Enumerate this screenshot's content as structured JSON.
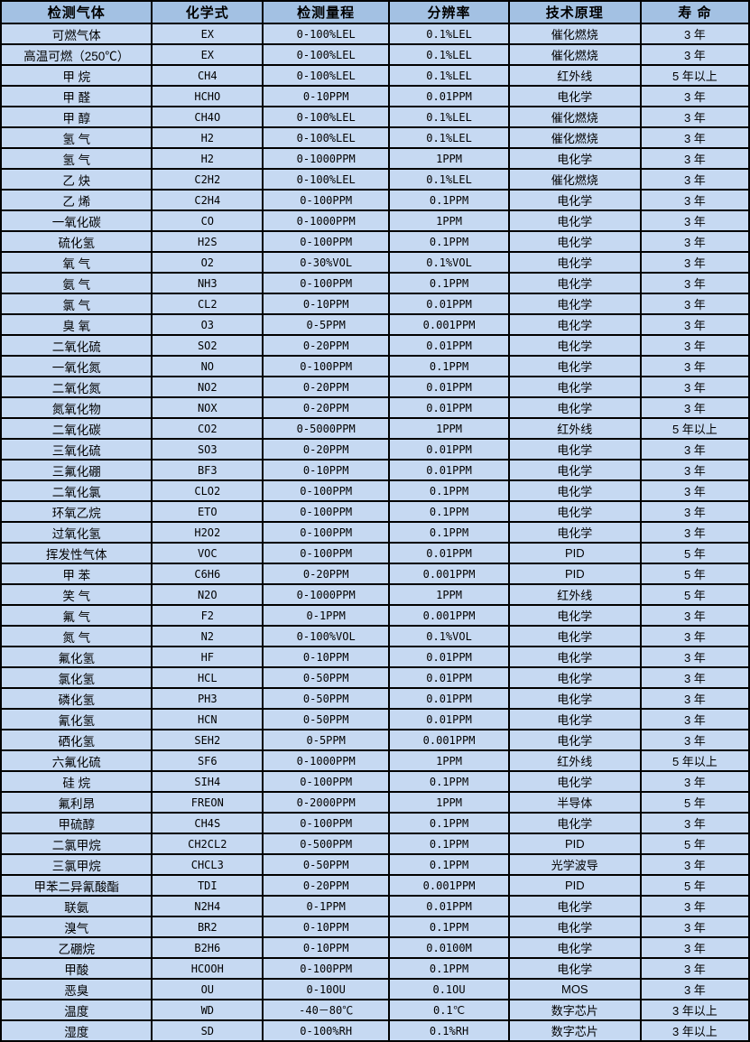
{
  "table": {
    "columns": [
      {
        "label": "检测气体"
      },
      {
        "label": "化学式"
      },
      {
        "label": "检测量程"
      },
      {
        "label": "分辨率"
      },
      {
        "label": "技术原理"
      },
      {
        "label": "寿 命"
      }
    ],
    "rows": [
      [
        "可燃气体",
        "EX",
        "0-100%LEL",
        "0.1%LEL",
        "催化燃烧",
        "3 年"
      ],
      [
        "高温可燃（250℃）",
        "EX",
        "0-100%LEL",
        "0.1%LEL",
        "催化燃烧",
        "3 年"
      ],
      [
        "甲 烷",
        "CH4",
        "0-100%LEL",
        "0.1%LEL",
        "红外线",
        "5 年以上"
      ],
      [
        "甲 醛",
        "HCHO",
        "0-10PPM",
        "0.01PPM",
        "电化学",
        "3 年"
      ],
      [
        "甲 醇",
        "CH4O",
        "0-100%LEL",
        "0.1%LEL",
        "催化燃烧",
        "3 年"
      ],
      [
        "氢 气",
        "H2",
        "0-100%LEL",
        "0.1%LEL",
        "催化燃烧",
        "3 年"
      ],
      [
        "氢 气",
        "H2",
        "0-1000PPM",
        "1PPM",
        "电化学",
        "3 年"
      ],
      [
        "乙 炔",
        "C2H2",
        "0-100%LEL",
        "0.1%LEL",
        "催化燃烧",
        "3 年"
      ],
      [
        "乙 烯",
        "C2H4",
        "0-100PPM",
        "0.1PPM",
        "电化学",
        "3 年"
      ],
      [
        "一氧化碳",
        "CO",
        "0-1000PPM",
        "1PPM",
        "电化学",
        "3 年"
      ],
      [
        "硫化氢",
        "H2S",
        "0-100PPM",
        "0.1PPM",
        "电化学",
        "3 年"
      ],
      [
        "氧 气",
        "O2",
        "0-30%VOL",
        "0.1%VOL",
        "电化学",
        "3 年"
      ],
      [
        "氨 气",
        "NH3",
        "0-100PPM",
        "0.1PPM",
        "电化学",
        "3 年"
      ],
      [
        "氯 气",
        "CL2",
        "0-10PPM",
        "0.01PPM",
        "电化学",
        "3 年"
      ],
      [
        "臭 氧",
        "O3",
        "0-5PPM",
        "0.001PPM",
        "电化学",
        "3 年"
      ],
      [
        "二氧化硫",
        "SO2",
        "0-20PPM",
        "0.01PPM",
        "电化学",
        "3 年"
      ],
      [
        "一氧化氮",
        "NO",
        "0-100PPM",
        "0.1PPM",
        "电化学",
        "3 年"
      ],
      [
        "二氧化氮",
        "NO2",
        "0-20PPM",
        "0.01PPM",
        "电化学",
        "3 年"
      ],
      [
        "氮氧化物",
        "NOX",
        "0-20PPM",
        "0.01PPM",
        "电化学",
        "3 年"
      ],
      [
        "二氧化碳",
        "CO2",
        "0-5000PPM",
        "1PPM",
        "红外线",
        "5 年以上"
      ],
      [
        "三氧化硫",
        "SO3",
        "0-20PPM",
        "0.01PPM",
        "电化学",
        "3 年"
      ],
      [
        "三氟化硼",
        "BF3",
        "0-10PPM",
        "0.01PPM",
        "电化学",
        "3 年"
      ],
      [
        "二氧化氯",
        "CLO2",
        "0-100PPM",
        "0.1PPM",
        "电化学",
        "3 年"
      ],
      [
        "环氧乙烷",
        "ETO",
        "0-100PPM",
        "0.1PPM",
        "电化学",
        "3 年"
      ],
      [
        "过氧化氢",
        "H2O2",
        "0-100PPM",
        "0.1PPM",
        "电化学",
        "3 年"
      ],
      [
        "挥发性气体",
        "VOC",
        "0-100PPM",
        "0.01PPM",
        "PID",
        "5 年"
      ],
      [
        "甲 苯",
        "C6H6",
        "0-20PPM",
        "0.001PPM",
        "PID",
        "5 年"
      ],
      [
        "笑 气",
        "N2O",
        "0-1000PPM",
        "1PPM",
        "红外线",
        "5 年"
      ],
      [
        "氟 气",
        "F2",
        "0-1PPM",
        "0.001PPM",
        "电化学",
        "3 年"
      ],
      [
        "氮 气",
        "N2",
        "0-100%VOL",
        "0.1%VOL",
        "电化学",
        "3 年"
      ],
      [
        "氟化氢",
        "HF",
        "0-10PPM",
        "0.01PPM",
        "电化学",
        "3 年"
      ],
      [
        "氯化氢",
        "HCL",
        "0-50PPM",
        "0.01PPM",
        "电化学",
        "3 年"
      ],
      [
        "磷化氢",
        "PH3",
        "0-50PPM",
        "0.01PPM",
        "电化学",
        "3 年"
      ],
      [
        "氰化氢",
        "HCN",
        "0-50PPM",
        "0.01PPM",
        "电化学",
        "3 年"
      ],
      [
        "硒化氢",
        "SEH2",
        "0-5PPM",
        "0.001PPM",
        "电化学",
        "3 年"
      ],
      [
        "六氟化硫",
        "SF6",
        "0-1000PPM",
        "1PPM",
        "红外线",
        "5 年以上"
      ],
      [
        "硅 烷",
        "SIH4",
        "0-100PPM",
        "0.1PPM",
        "电化学",
        "3 年"
      ],
      [
        "氟利昂",
        "FREON",
        "0-2000PPM",
        "1PPM",
        "半导体",
        "5 年"
      ],
      [
        "甲硫醇",
        "CH4S",
        "0-100PPM",
        "0.1PPM",
        "电化学",
        "3 年"
      ],
      [
        "二氯甲烷",
        "CH2CL2",
        "0-500PPM",
        "0.1PPM",
        "PID",
        "5 年"
      ],
      [
        "三氯甲烷",
        "CHCL3",
        "0-50PPM",
        "0.1PPM",
        "光学波导",
        "3 年"
      ],
      [
        "甲苯二异氰酸酯",
        "TDI",
        "0-20PPM",
        "0.001PPM",
        "PID",
        "5 年"
      ],
      [
        "联氨",
        "N2H4",
        "0-1PPM",
        "0.01PPM",
        "电化学",
        "3 年"
      ],
      [
        "溴气",
        "BR2",
        "0-10PPM",
        "0.1PPM",
        "电化学",
        "3 年"
      ],
      [
        "乙硼烷",
        "B2H6",
        "0-10PPM",
        "0.0100M",
        "电化学",
        "3 年"
      ],
      [
        "甲酸",
        "HCOOH",
        "0-100PPM",
        "0.1PPM",
        "电化学",
        "3 年"
      ],
      [
        "恶臭",
        "OU",
        "0-10OU",
        "0.1OU",
        "MOS",
        "3 年"
      ],
      [
        "温度",
        "WD",
        "-40－80℃",
        "0.1℃",
        "数字芯片",
        "3 年以上"
      ],
      [
        "湿度",
        "SD",
        "0-100%RH",
        "0.1%RH",
        "数字芯片",
        "3 年以上"
      ]
    ]
  },
  "colors": {
    "header_bg": "#a3c1e3",
    "row_bg": "#c6d9f2",
    "border": "#000000",
    "text": "#000000"
  }
}
